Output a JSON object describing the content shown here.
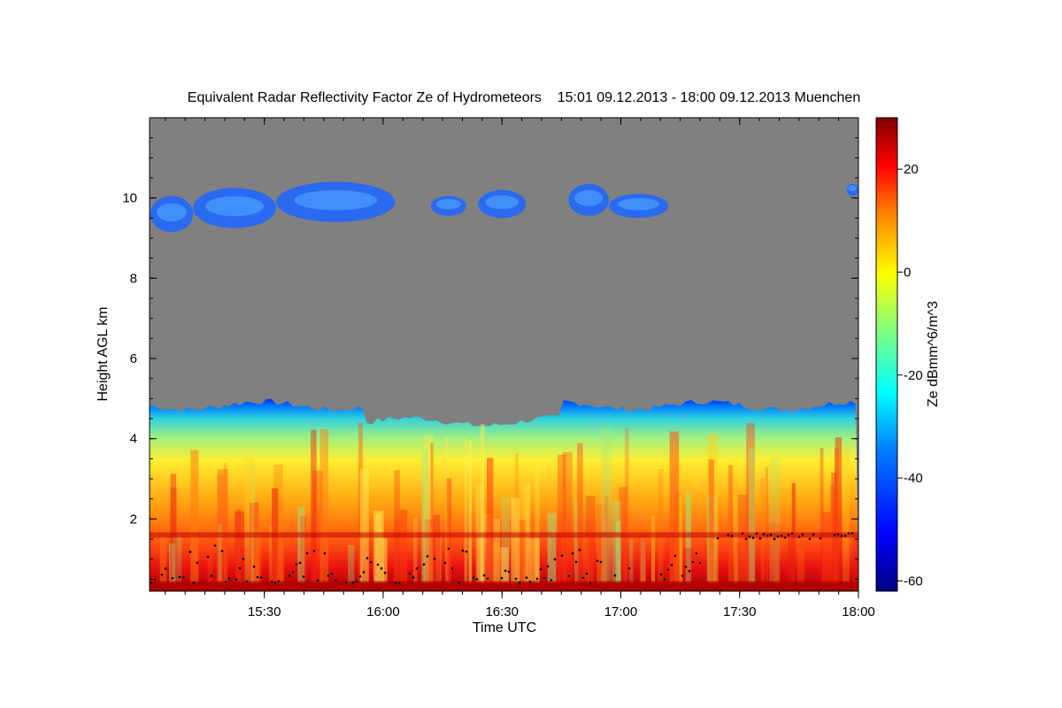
{
  "chart_data": {
    "type": "heatmap",
    "title": "Equivalent Radar Reflectivity Factor Ze of Hydrometeors    15:01 09.12.2013 - 18:00 09.12.2013 Muenchen",
    "xlabel": "Time UTC",
    "ylabel": "Height AGL km",
    "x_ticks": [
      "15:30",
      "16:00",
      "16:30",
      "17:00",
      "17:30",
      "18:00"
    ],
    "x_tick_hours": [
      15.5,
      16.0,
      16.5,
      17.0,
      17.5,
      18.0
    ],
    "xlim_hours": [
      15.017,
      18.0
    ],
    "y_ticks": [
      2,
      4,
      6,
      8,
      10
    ],
    "ylim": [
      0.2,
      12.0
    ],
    "colorbar": {
      "label": "Ze dBmm^6/m^3",
      "ticks": [
        20,
        0,
        -20,
        -40,
        -60
      ],
      "range": [
        -62,
        30
      ],
      "colormap": [
        "#00007f",
        "#0000ff",
        "#007fff",
        "#00ffff",
        "#7fff7f",
        "#ffff00",
        "#ff7f00",
        "#ff0000",
        "#7f0000"
      ]
    },
    "no_signal_color": "#808080",
    "layers": {
      "cirrus_top_km": 10.5,
      "cirrus_base_km": 9.0,
      "precip_top_km": 4.8,
      "bright_band_km": 1.6
    }
  }
}
